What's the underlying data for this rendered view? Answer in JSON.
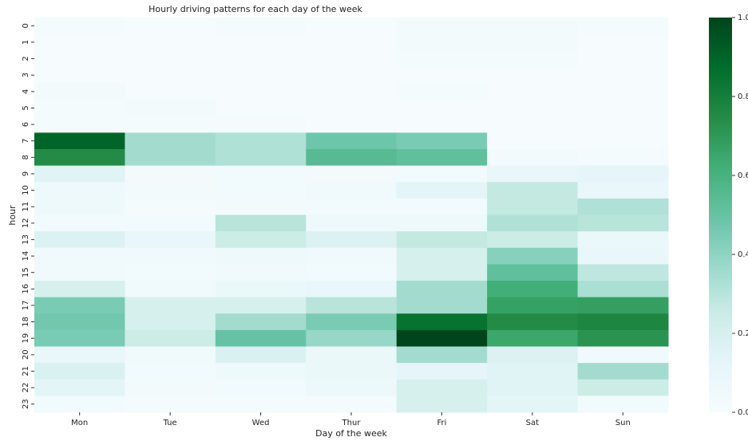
{
  "chart_data": {
    "type": "heatmap",
    "title": "Hourly driving patterns for each day of the week",
    "xlabel": "Day of the week",
    "ylabel": "hour",
    "categories": [
      "Mon",
      "Tue",
      "Wed",
      "Thur",
      "Fri",
      "Sat",
      "Sun"
    ],
    "rows": [
      "0",
      "1",
      "2",
      "3",
      "4",
      "5",
      "6",
      "7",
      "8",
      "9",
      "10",
      "11",
      "12",
      "13",
      "14",
      "15",
      "16",
      "17",
      "18",
      "19",
      "20",
      "21",
      "22",
      "23"
    ],
    "values": [
      [
        0.02,
        0.01,
        0.02,
        0.01,
        0.03,
        0.03,
        0.02
      ],
      [
        0.01,
        0.01,
        0.01,
        0.01,
        0.03,
        0.03,
        0.01
      ],
      [
        0.01,
        0.01,
        0.01,
        0.01,
        0.02,
        0.02,
        0.01
      ],
      [
        0.01,
        0.01,
        0.01,
        0.01,
        0.01,
        0.01,
        0.01
      ],
      [
        0.03,
        0.01,
        0.01,
        0.01,
        0.02,
        0.01,
        0.01
      ],
      [
        0.02,
        0.03,
        0.01,
        0.01,
        0.01,
        0.01,
        0.01
      ],
      [
        0.02,
        0.02,
        0.02,
        0.01,
        0.01,
        0.01,
        0.01
      ],
      [
        0.9,
        0.35,
        0.32,
        0.48,
        0.45,
        0.01,
        0.01
      ],
      [
        0.75,
        0.35,
        0.32,
        0.55,
        0.52,
        0.03,
        0.02
      ],
      [
        0.15,
        0.03,
        0.04,
        0.03,
        0.04,
        0.1,
        0.12
      ],
      [
        0.06,
        0.03,
        0.04,
        0.05,
        0.13,
        0.27,
        0.1
      ],
      [
        0.06,
        0.02,
        0.03,
        0.04,
        0.04,
        0.27,
        0.32
      ],
      [
        0.04,
        0.04,
        0.3,
        0.06,
        0.06,
        0.32,
        0.3
      ],
      [
        0.17,
        0.1,
        0.25,
        0.17,
        0.27,
        0.25,
        0.08
      ],
      [
        0.05,
        0.05,
        0.06,
        0.05,
        0.2,
        0.42,
        0.1
      ],
      [
        0.05,
        0.04,
        0.05,
        0.04,
        0.2,
        0.52,
        0.28
      ],
      [
        0.2,
        0.05,
        0.08,
        0.1,
        0.35,
        0.62,
        0.33
      ],
      [
        0.45,
        0.2,
        0.2,
        0.3,
        0.35,
        0.67,
        0.68
      ],
      [
        0.47,
        0.2,
        0.35,
        0.45,
        0.85,
        0.75,
        0.77
      ],
      [
        0.45,
        0.25,
        0.5,
        0.38,
        1.0,
        0.65,
        0.72
      ],
      [
        0.1,
        0.05,
        0.18,
        0.08,
        0.35,
        0.17,
        0.05
      ],
      [
        0.18,
        0.04,
        0.06,
        0.08,
        0.12,
        0.15,
        0.35
      ],
      [
        0.13,
        0.03,
        0.04,
        0.07,
        0.2,
        0.15,
        0.25
      ],
      [
        0.04,
        0.02,
        0.02,
        0.02,
        0.2,
        0.13,
        0.04
      ]
    ],
    "colormap": [
      "#f7fcfd",
      "#e5f5f9",
      "#ccece6",
      "#99d8c9",
      "#66c2a4",
      "#41ae76",
      "#238b45",
      "#006d2c",
      "#00441b"
    ],
    "clim": [
      0,
      1
    ],
    "cticks": [
      {
        "value": 0,
        "label": "0.0"
      },
      0.2,
      0.4,
      0.6,
      0.8,
      {
        "value": 1,
        "label": "1.0"
      }
    ]
  }
}
